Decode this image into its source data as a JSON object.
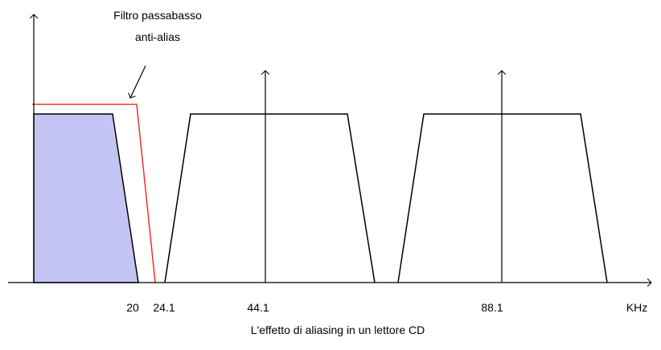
{
  "annotation": {
    "lines": [
      "Filtro passabasso",
      "anti-alias"
    ]
  },
  "axis": {
    "labels": [
      "20",
      "24.1",
      "44.1",
      "88.1"
    ],
    "unit": "KHz"
  },
  "caption": "L'effetto di aliasing in un lettore CD"
}
